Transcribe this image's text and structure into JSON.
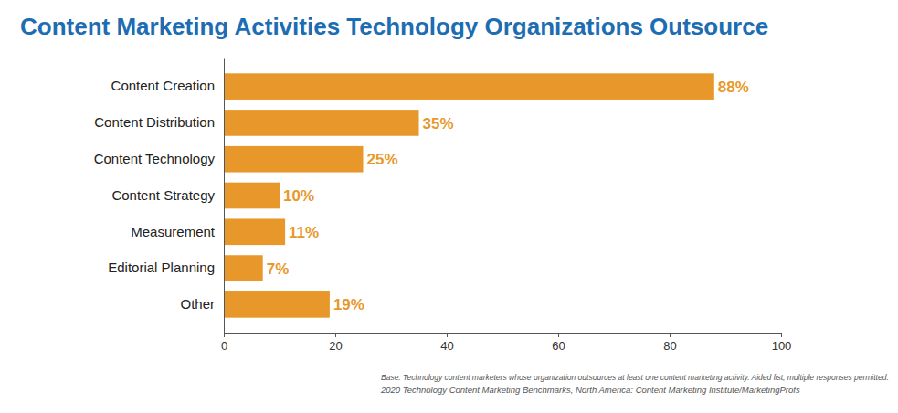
{
  "chart_data": {
    "type": "bar",
    "orientation": "horizontal",
    "title": "Content Marketing Activities Technology Organizations Outsource",
    "categories": [
      "Content Creation",
      "Content Distribution",
      "Content Technology",
      "Content Strategy",
      "Measurement",
      "Editorial Planning",
      "Other"
    ],
    "values": [
      88,
      35,
      25,
      10,
      11,
      7,
      19
    ],
    "value_labels": [
      "88%",
      "35%",
      "25%",
      "10%",
      "11%",
      "7%",
      "19%"
    ],
    "color": "#e8982a",
    "xlim": [
      0,
      100
    ],
    "xticks": [
      0,
      20,
      40,
      60,
      80,
      100
    ],
    "grid": false,
    "data_labels": true,
    "annotations": [
      "Base: Technology content marketers whose organization outsources at least one content marketing activity. Aided list; multiple responses permitted.",
      "2020 Technology Content Marketing Benchmarks, North America: Content Marketing Institute/MarketingProfs"
    ]
  }
}
